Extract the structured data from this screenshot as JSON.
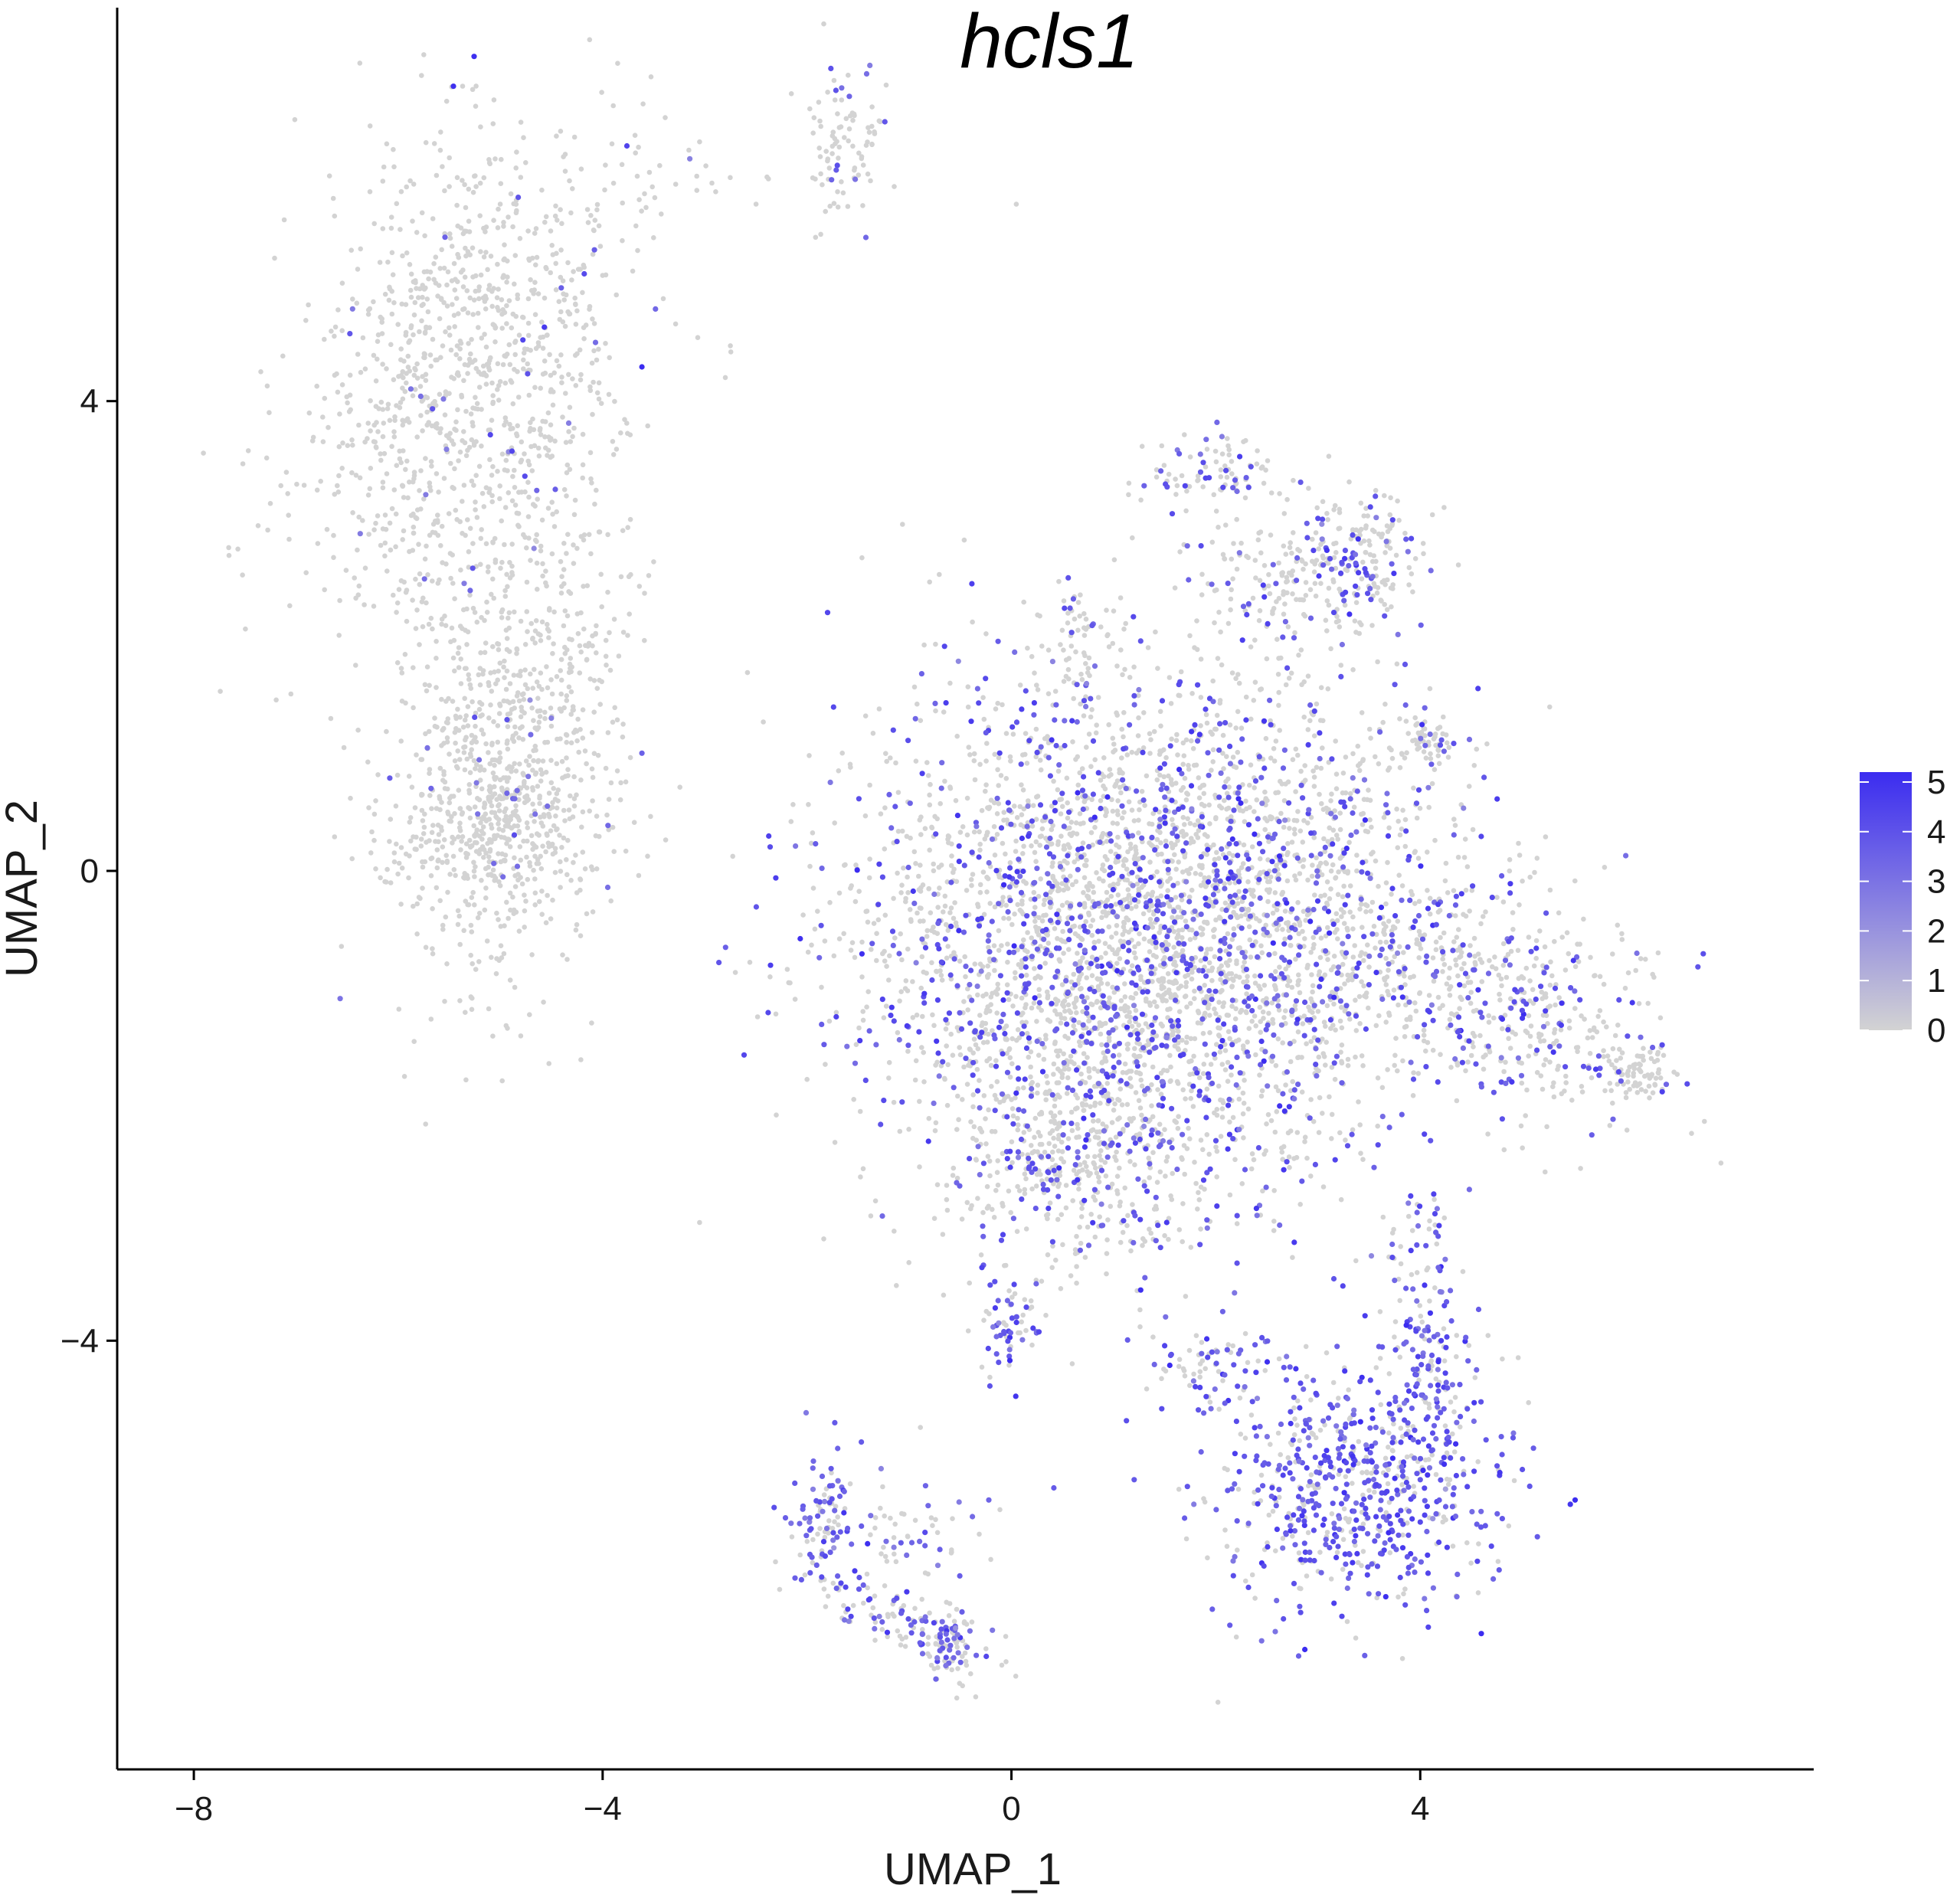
{
  "chart_data": {
    "type": "scatter",
    "title": "hcls1",
    "xlabel": "UMAP_1",
    "ylabel": "UMAP_2",
    "xlim": [
      -8.75,
      7.85
    ],
    "ylim": [
      -7.65,
      7.35
    ],
    "x_ticks": [
      -8,
      -4,
      0,
      4
    ],
    "y_ticks": [
      -4,
      0,
      4
    ],
    "x_tick_labels": [
      "−8",
      "−4",
      "0",
      "4"
    ],
    "y_tick_labels": [
      "−4",
      "0",
      "4"
    ],
    "grid": false,
    "color_scale": {
      "low_color": "#d3d3d3",
      "high_color": "#3b2cf0",
      "min": 0,
      "max": 5.2,
      "ticks": [
        0,
        1,
        2,
        3,
        4,
        5
      ],
      "placement": "right"
    },
    "clusters": [
      {
        "cx": -5.3,
        "cy": 4.2,
        "sx": 0.75,
        "sy": 1.1,
        "n": 1100,
        "rot": -0.32,
        "expr_frac": 0.03,
        "expr_mean": 3.4
      },
      {
        "cx": -4.9,
        "cy": 1.0,
        "sx": 0.55,
        "sy": 1.05,
        "n": 800,
        "rot": -0.15,
        "expr_frac": 0.03,
        "expr_mean": 3.4
      },
      {
        "cx": -5.1,
        "cy": 0.4,
        "sx": 0.45,
        "sy": 0.3,
        "n": 250,
        "rot": 0,
        "expr_frac": 0.03,
        "expr_mean": 3.4
      },
      {
        "cx": -1.6,
        "cy": 6.2,
        "sx": 0.18,
        "sy": 0.3,
        "n": 90,
        "rot": 0,
        "expr_frac": 0.12,
        "expr_mean": 3.6
      },
      {
        "cx": 1.0,
        "cy": -0.6,
        "sx": 1.3,
        "sy": 1.15,
        "n": 3000,
        "rot": 0,
        "expr_frac": 0.27,
        "expr_mean": 3.9
      },
      {
        "cx": 2.6,
        "cy": -0.4,
        "sx": 1.0,
        "sy": 0.9,
        "n": 900,
        "rot": 0,
        "expr_frac": 0.27,
        "expr_mean": 3.9
      },
      {
        "cx": 0.6,
        "cy": -2.4,
        "sx": 0.55,
        "sy": 0.55,
        "n": 350,
        "rot": 0,
        "expr_frac": 0.25,
        "expr_mean": 3.9
      },
      {
        "cx": 5.0,
        "cy": -1.2,
        "sx": 0.75,
        "sy": 0.45,
        "n": 420,
        "rot": -0.25,
        "expr_frac": 0.27,
        "expr_mean": 3.9
      },
      {
        "cx": 6.1,
        "cy": -1.75,
        "sx": 0.2,
        "sy": 0.12,
        "n": 70,
        "rot": 0,
        "expr_frac": 0.05,
        "expr_mean": 3.2
      },
      {
        "cx": 2.0,
        "cy": 3.4,
        "sx": 0.35,
        "sy": 0.15,
        "n": 90,
        "rot": 0,
        "expr_frac": 0.35,
        "expr_mean": 3.8
      },
      {
        "cx": 2.9,
        "cy": 2.5,
        "sx": 0.55,
        "sy": 0.35,
        "n": 250,
        "rot": 0.3,
        "expr_frac": 0.22,
        "expr_mean": 3.8
      },
      {
        "cx": 3.5,
        "cy": 2.7,
        "sx": 0.2,
        "sy": 0.25,
        "n": 80,
        "rot": 0,
        "expr_frac": 0.3,
        "expr_mean": 3.8
      },
      {
        "cx": 4.1,
        "cy": 1.15,
        "sx": 0.15,
        "sy": 0.15,
        "n": 60,
        "rot": 0,
        "expr_frac": 0.2,
        "expr_mean": 3.6
      },
      {
        "cx": 0.7,
        "cy": 1.9,
        "sx": 0.2,
        "sy": 0.3,
        "n": 60,
        "rot": 0,
        "expr_frac": 0.2,
        "expr_mean": 3.6
      },
      {
        "cx": 0.0,
        "cy": -3.85,
        "sx": 0.15,
        "sy": 0.22,
        "n": 60,
        "rot": 0,
        "expr_frac": 0.5,
        "expr_mean": 3.8
      },
      {
        "cx": 3.3,
        "cy": -5.2,
        "sx": 0.75,
        "sy": 0.55,
        "n": 650,
        "rot": 0,
        "expr_frac": 0.65,
        "expr_mean": 3.9
      },
      {
        "cx": 4.05,
        "cy": -4.2,
        "sx": 0.22,
        "sy": 0.7,
        "n": 200,
        "rot": 0,
        "expr_frac": 0.7,
        "expr_mean": 3.9
      },
      {
        "cx": 1.9,
        "cy": -4.2,
        "sx": 0.3,
        "sy": 0.2,
        "n": 60,
        "rot": 0,
        "expr_frac": 0.5,
        "expr_mean": 3.7
      },
      {
        "cx": -1.85,
        "cy": -5.5,
        "sx": 0.15,
        "sy": 0.28,
        "n": 90,
        "rot": 0,
        "expr_frac": 0.55,
        "expr_mean": 3.8
      },
      {
        "cx": -1.1,
        "cy": -6.35,
        "sx": 0.55,
        "sy": 0.12,
        "n": 120,
        "rot": -0.35,
        "expr_frac": 0.5,
        "expr_mean": 3.8
      },
      {
        "cx": -0.6,
        "cy": -6.6,
        "sx": 0.12,
        "sy": 0.18,
        "n": 60,
        "rot": 0,
        "expr_frac": 0.3,
        "expr_mean": 3.6
      },
      {
        "cx": -1.0,
        "cy": -5.6,
        "sx": 0.35,
        "sy": 0.3,
        "n": 60,
        "rot": 0,
        "expr_frac": 0.35,
        "expr_mean": 3.7
      },
      {
        "cx": -3.1,
        "cy": 5.9,
        "sx": 0.8,
        "sy": 0.18,
        "n": 30,
        "rot": -0.15,
        "expr_frac": 0.1,
        "expr_mean": 3.5
      }
    ]
  }
}
